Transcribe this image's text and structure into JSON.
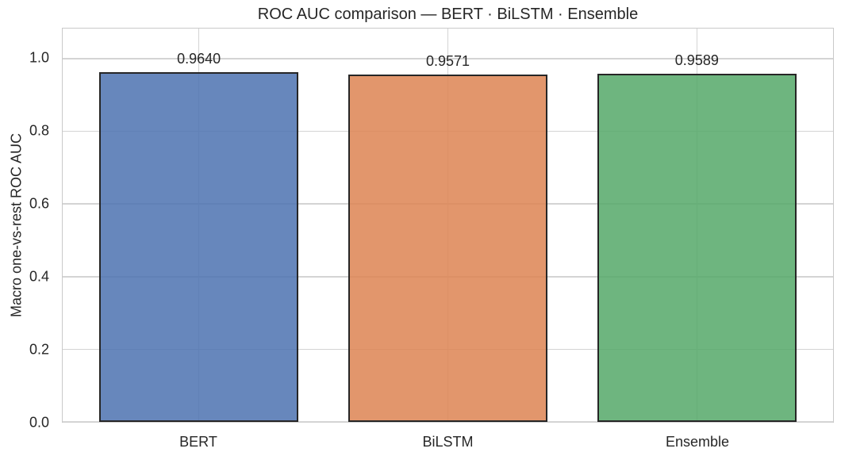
{
  "figure": {
    "background_color": "#ffffff"
  },
  "chart_data": {
    "type": "bar",
    "title": "ROC AUC comparison — BERT · BiLSTM · Ensemble",
    "categories": [
      "BERT",
      "BiLSTM",
      "Ensemble"
    ],
    "values": [
      0.964,
      0.9571,
      0.9589
    ],
    "bar_value_labels": [
      "0.9640",
      "0.9571",
      "0.9589"
    ],
    "xlabel": "",
    "ylabel": "Macro one-vs-rest ROC AUC",
    "ylim": [
      0,
      1.083
    ],
    "yticks": [
      0.0,
      0.2,
      0.4,
      0.6,
      0.8,
      1.0
    ],
    "ytick_labels": [
      "0.0",
      "0.2",
      "0.4",
      "0.6",
      "0.8",
      "1.0"
    ],
    "grid": "both",
    "legend": "none",
    "style": {
      "bar_colors": [
        "#4c72b0",
        "#dd8452",
        "#55a868"
      ],
      "bar_fill_alpha": 0.85,
      "bar_edge_color": "#262626",
      "grid_color": "#d4d4d4",
      "spine_color": "#c9c9c9",
      "text_color": "#262626"
    }
  }
}
